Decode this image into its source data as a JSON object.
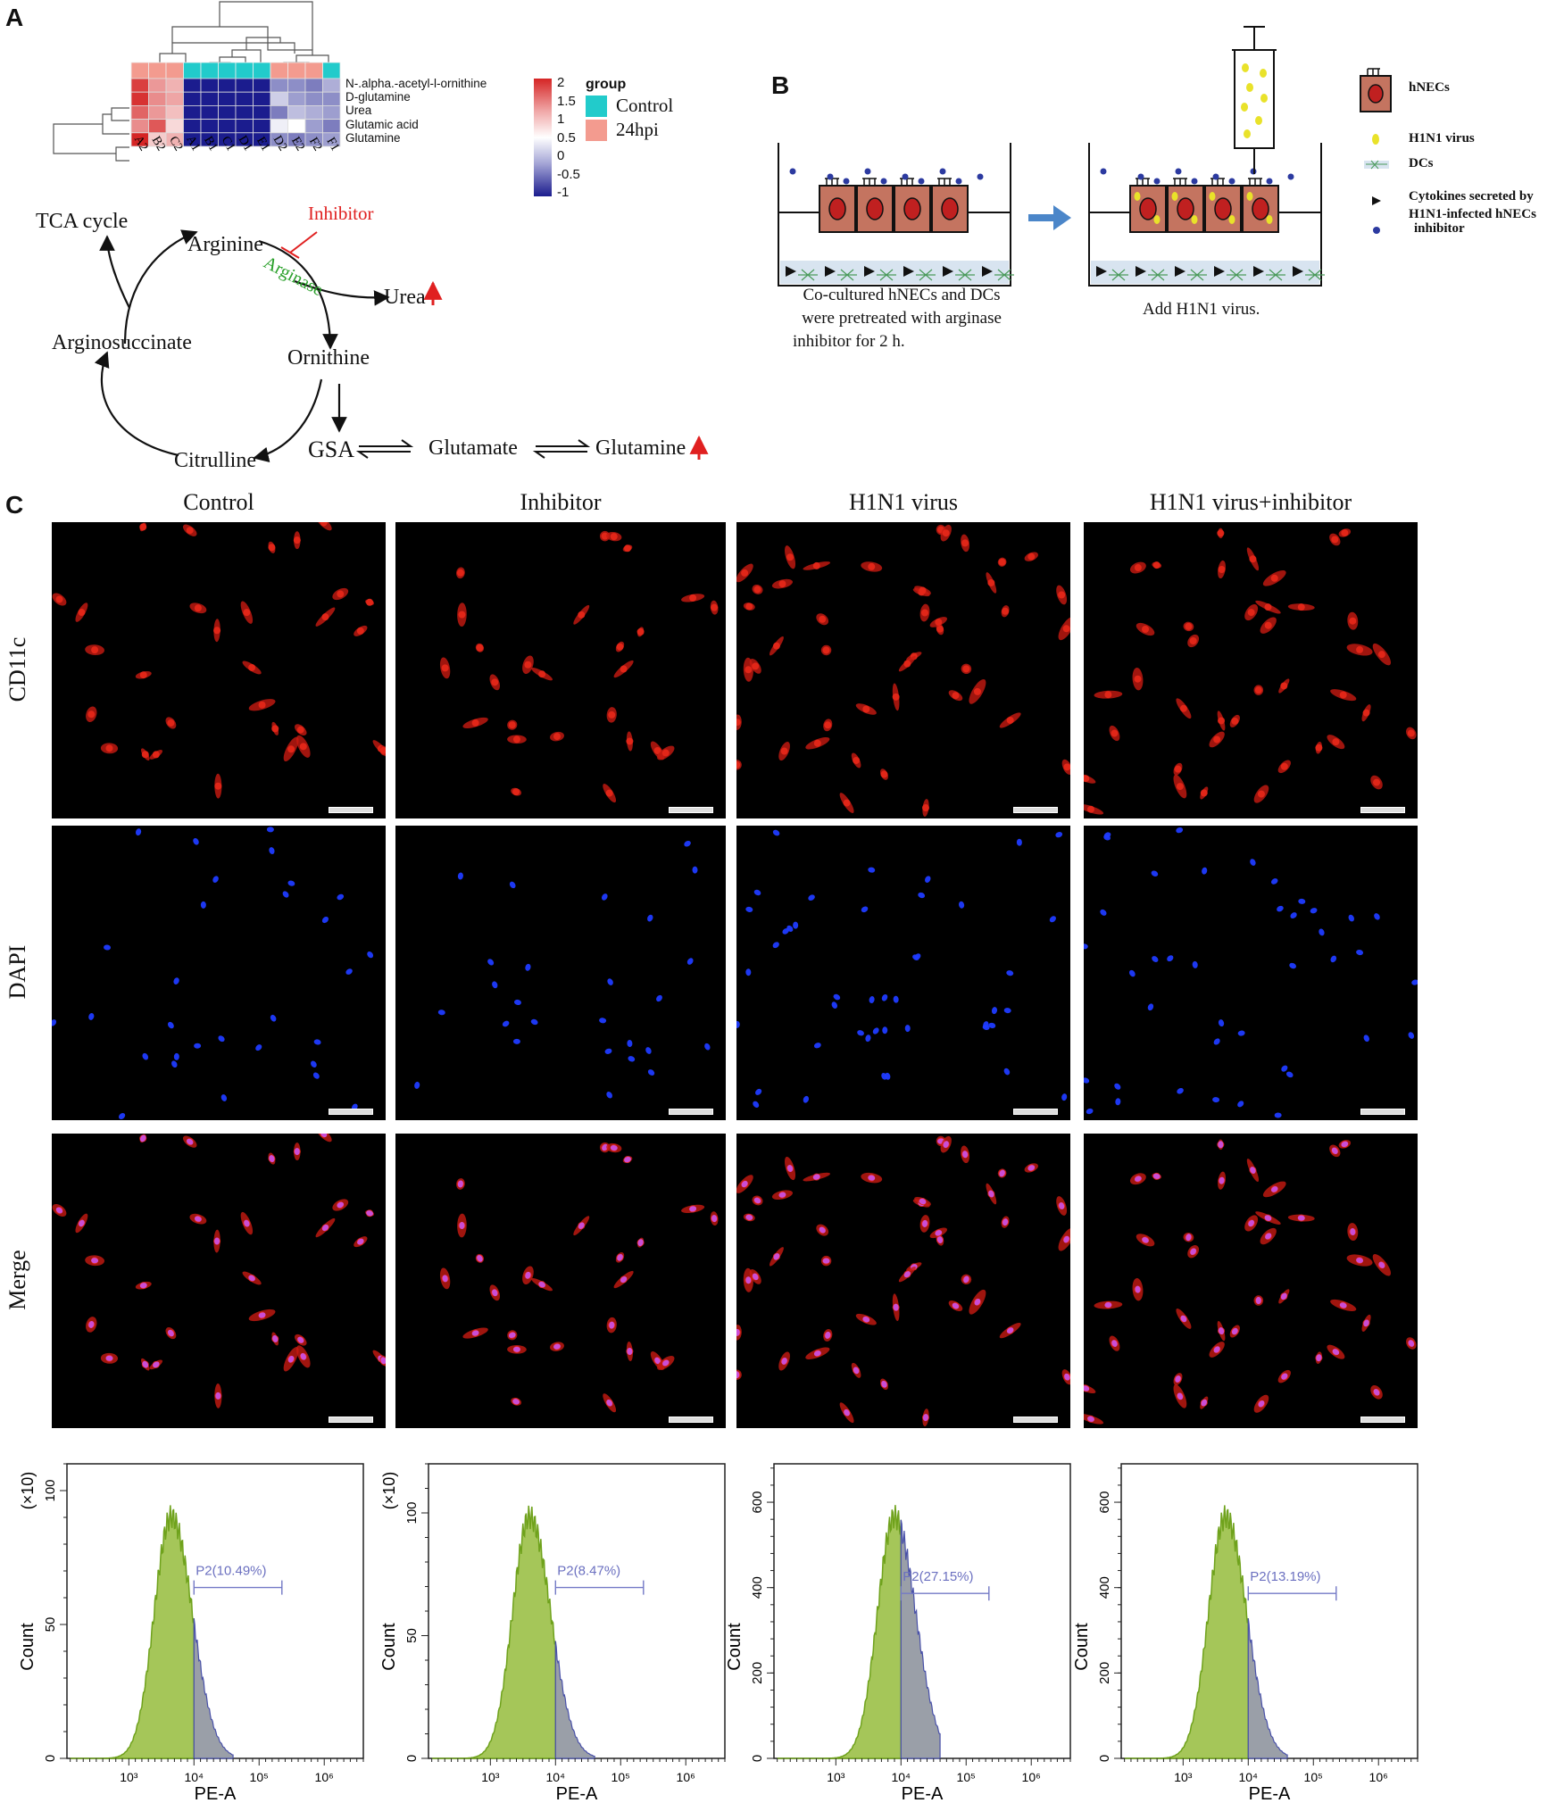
{
  "panels": {
    "a": "A",
    "b": "B",
    "c": "C"
  },
  "heatmap": {
    "samples": [
      "A2",
      "B2",
      "C2",
      "A1",
      "B1",
      "C1",
      "D1",
      "E1",
      "D2",
      "E2",
      "F2",
      "F1"
    ],
    "groups": [
      "24hpi",
      "24hpi",
      "24hpi",
      "Control",
      "Control",
      "Control",
      "Control",
      "Control",
      "24hpi",
      "24hpi",
      "24hpi",
      "Control"
    ],
    "rows": [
      "N-.alpha.-acetyl-l-ornithine",
      "D-glutamine",
      "Urea",
      "Glutamic acid",
      "Glutamine"
    ],
    "values": [
      [
        1.9,
        1.2,
        1.0,
        -1.0,
        -1.0,
        -1.0,
        -1.0,
        -1.0,
        -0.3,
        -0.3,
        -0.4,
        -0.1
      ],
      [
        2.0,
        1.3,
        1.1,
        -1.0,
        -1.0,
        -1.0,
        -1.0,
        -1.0,
        0.1,
        -0.2,
        -0.3,
        -0.3
      ],
      [
        1.6,
        1.2,
        0.9,
        -1.0,
        -1.0,
        -1.0,
        -1.0,
        -1.0,
        -0.4,
        0.0,
        -0.1,
        -0.2
      ],
      [
        1.3,
        1.7,
        0.7,
        -1.0,
        -1.0,
        -1.0,
        -1.0,
        -1.0,
        0.3,
        0.4,
        -0.2,
        -0.4
      ],
      [
        2.1,
        0.8,
        1.0,
        -1.0,
        -1.0,
        -1.0,
        -1.0,
        -1.0,
        -0.3,
        -0.4,
        -0.3,
        -0.2
      ]
    ],
    "scale_ticks": [
      "2",
      "1.5",
      "1",
      "0.5",
      "0",
      "-0.5",
      "-1"
    ],
    "legend_title": "group",
    "legend": [
      {
        "label": "Control",
        "color": "#22cbcb"
      },
      {
        "label": "24hpi",
        "color": "#f39b8f"
      }
    ],
    "colors": {
      "high": "#d52525",
      "mid": "#ffffff",
      "low": "#1b1c8e"
    }
  },
  "pathway": {
    "tca": "TCA cycle",
    "arginine": "Arginine",
    "inhibitor": "Inhibitor",
    "arginase": "Arginase",
    "urea": "Urea",
    "ornithine": "Ornithine",
    "arginosuccinate": "Arginosuccinate",
    "citrulline": "Citrulline",
    "gsa": "GSA",
    "glutamate": "Glutamate",
    "glutamine": "Glutamine"
  },
  "schematic": {
    "caption_left": [
      "Co-cultured  hNECs and DCs",
      "were pretreated with arginase",
      "inhibitor for 2 h."
    ],
    "caption_right": "Add H1N1 virus.",
    "legend": {
      "hnecs": "hNECs",
      "virus": "H1N1 virus",
      "dcs": "DCs",
      "cytokines": [
        "Cytokines secreted by",
        "H1N1-infected hNECs"
      ],
      "inhibitor": "inhibitor"
    }
  },
  "micrographs": {
    "columns": [
      "Control",
      "Inhibitor",
      "H1N1 virus",
      "H1N1 virus+inhibitor"
    ],
    "rows": [
      "CD11c",
      "DAPI",
      "Merge"
    ]
  },
  "histograms": [
    {
      "ylabel": "Count",
      "multiplier": "(×10)",
      "yticks": [
        "0",
        "50",
        "100"
      ],
      "ymax": 110,
      "gate_label": "P2(10.49%)",
      "gate_percent": 10.49,
      "xlabel": "PE-A",
      "xticks": [
        "10³",
        "10⁴",
        "10⁵",
        "10⁶"
      ]
    },
    {
      "ylabel": "Count",
      "multiplier": "(×10)",
      "yticks": [
        "0",
        "50",
        "100"
      ],
      "ymax": 120,
      "gate_label": "P2(8.47%)",
      "gate_percent": 8.47,
      "xlabel": "PE-A",
      "xticks": [
        "10³",
        "10⁴",
        "10⁵",
        "10⁶"
      ]
    },
    {
      "ylabel": "Count",
      "multiplier": "",
      "yticks": [
        "0",
        "200",
        "400",
        "600"
      ],
      "ymax": 690,
      "gate_label": "P2(27.15%)",
      "gate_percent": 27.15,
      "xlabel": "PE-A",
      "xticks": [
        "10³",
        "10⁴",
        "10⁵",
        "10⁶"
      ]
    },
    {
      "ylabel": "Count",
      "multiplier": "",
      "yticks": [
        "0",
        "200",
        "400",
        "600"
      ],
      "ymax": 690,
      "gate_label": "P2(13.19%)",
      "gate_percent": 13.19,
      "xlabel": "PE-A",
      "xticks": [
        "10³",
        "10⁴",
        "10⁵",
        "10⁶"
      ]
    }
  ]
}
